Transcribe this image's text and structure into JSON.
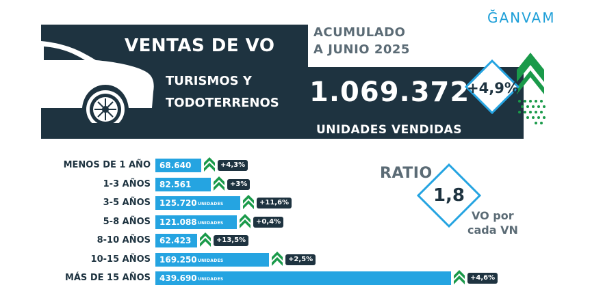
{
  "brand": {
    "logo_text": "ĞANVAM",
    "accent": "#1e9fd8",
    "dark": "#1e3340",
    "bar_color": "#25a4e1",
    "up_color": "#1a9a4a"
  },
  "header": {
    "title": "VENTAS DE VO",
    "period_line_1": "ACUMULADO",
    "period_line_2": "A JUNIO 2025",
    "segment_line_1": "TURISMOS Y",
    "segment_line_2": "TODOTERRENOS",
    "total": "1.069.372",
    "total_label": "UNIDADES VENDIDAS",
    "growth": "+4,9%"
  },
  "ratio": {
    "label": "RATIO",
    "value": "1,8",
    "note_line_1": "VO por",
    "note_line_2": "cada VN"
  },
  "chart_data": {
    "type": "bar",
    "orientation": "horizontal",
    "unit_label": "UNIDADES",
    "categories": [
      "MENOS DE 1 AÑO",
      "1-3 AÑOS",
      "3-5 AÑOS",
      "5-8 AÑOS",
      "8-10 AÑOS",
      "10-15 AÑOS",
      "MÁS DE 15 AÑOS"
    ],
    "values": [
      68640,
      82561,
      125720,
      121088,
      62423,
      169250,
      439690
    ],
    "value_labels": [
      "68.640",
      "82.561",
      "125.720",
      "121.088",
      "62.423",
      "169.250",
      "439.690"
    ],
    "changes": [
      "+4,3%",
      "+3%",
      "+11,6%",
      "+0,4%",
      "+13,5%",
      "+2,5%",
      "+4,6%"
    ],
    "show_unit": [
      false,
      false,
      true,
      true,
      false,
      true,
      true
    ]
  }
}
